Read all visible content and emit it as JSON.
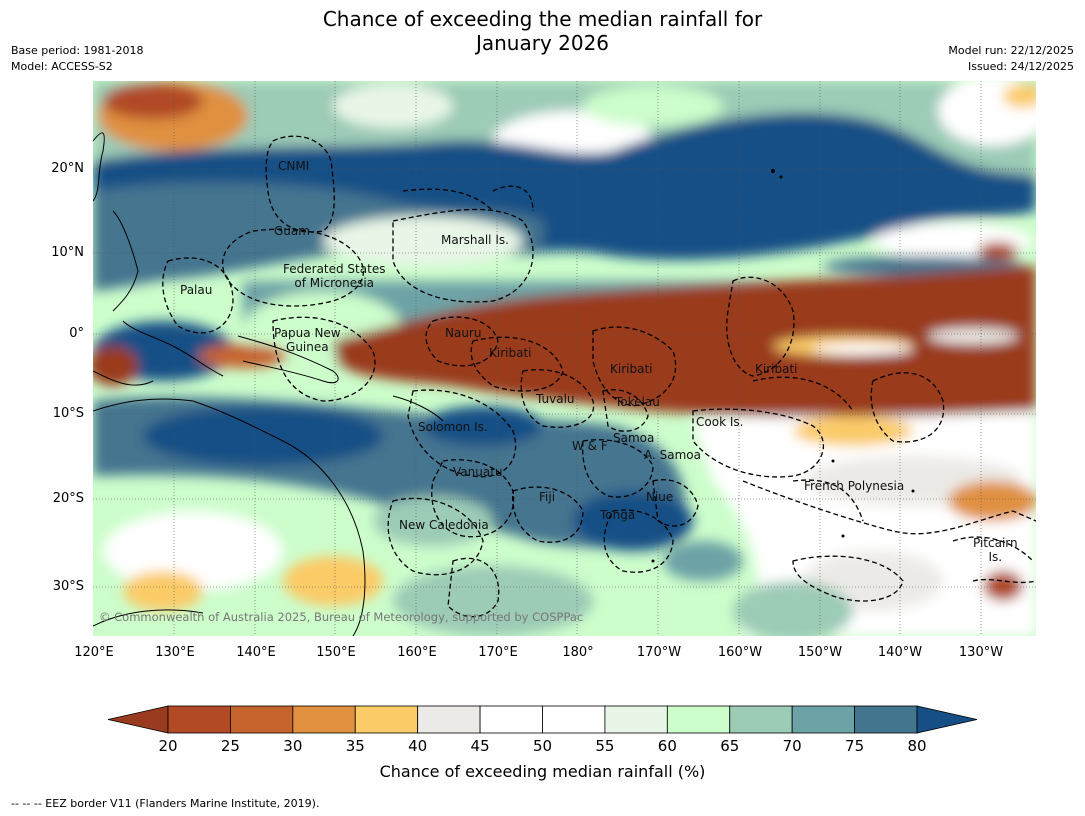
{
  "title_line1": "Chance of exceeding the median rainfall for",
  "title_line2": "January 2026",
  "base_period": "Base period: 1981-2018",
  "model": "Model: ACCESS-S2",
  "model_run": "Model run: 22/12/2025",
  "issued": "Issued: 24/12/2025",
  "lat_labels": [
    "20°N",
    "10°N",
    "0°",
    "10°S",
    "20°S",
    "30°S"
  ],
  "lon_labels": [
    "120°E",
    "130°E",
    "140°E",
    "150°E",
    "160°E",
    "170°E",
    "180°",
    "170°W",
    "160°W",
    "150°W",
    "140°W",
    "130°W"
  ],
  "regions": {
    "cnmi": "CNMI",
    "guam": "Guam",
    "marshall": "Marshall Is.",
    "fsm_1": "Federated States",
    "fsm_2": "of Micronesia",
    "palau": "Palau",
    "png_1": "Papua New",
    "png_2": "Guinea",
    "nauru": "Nauru",
    "kiribati_w": "Kiribati",
    "kiribati_c": "Kiribati",
    "kiribati_e": "Kiribati",
    "tuvalu": "Tuvalu",
    "tokelau": "Tokelau",
    "cook": "Cook Is.",
    "solomon": "Solomon Is.",
    "wf": "W & F",
    "samoa": "Samoa",
    "asamoa": "A. Samoa",
    "vanuatu": "Vanuatu",
    "fiji": "Fiji",
    "niue": "Niue",
    "tonga": "Tonga",
    "french_polynesia": "French Polynesia",
    "newcal": "New Caledonia",
    "pitcairn_1": "Pitcairn",
    "pitcairn_2": "Is."
  },
  "copyright": "© Commonwealth of Australia 2025, Bureau of Meteorology, supported by COSPPac",
  "colorbar": {
    "ticks": [
      "20",
      "25",
      "30",
      "35",
      "40",
      "45",
      "50",
      "55",
      "60",
      "65",
      "70",
      "75",
      "80"
    ],
    "colors": [
      "#9a3a1f",
      "#b14a25",
      "#c6642e",
      "#e0903f",
      "#fbcb68",
      "#eceae6",
      "#ffffff",
      "#ffffff",
      "#e8f6e7",
      "#ccfdcb",
      "#9ccbb6",
      "#6da2a6",
      "#44758f",
      "#154f86"
    ],
    "title": "Chance of exceeding median rainfall (%)"
  },
  "footer": "--  --  -- EEZ border V11 (Flanders Marine Institute, 2019)."
}
